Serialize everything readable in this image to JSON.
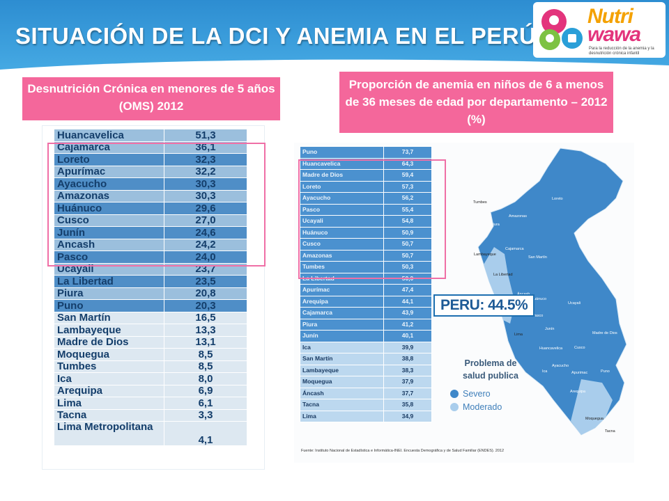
{
  "slide": {
    "title": "SITUACIÓN DE LA DCI Y ANEMIA EN EL PERÚ"
  },
  "logo": {
    "word1": "Nutri",
    "word2": "wawa",
    "tagline": "Para la reducción de la anemia y la desnutrición crónica infantil",
    "icon_name": "family-health-icon"
  },
  "left_panel": {
    "header": "Desnutrición Crónica en menores de 5 años (OMS) 2012",
    "rows": [
      {
        "region": "Huancavelica",
        "value": "51,3"
      },
      {
        "region": "Cajamarca",
        "value": "36,1"
      },
      {
        "region": "Loreto",
        "value": "32,3"
      },
      {
        "region": "Apurímac",
        "value": "32,2"
      },
      {
        "region": "Ayacucho",
        "value": "30,3"
      },
      {
        "region": "Amazonas",
        "value": "30,3"
      },
      {
        "region": "Huánuco",
        "value": "29,6"
      },
      {
        "region": "Cusco",
        "value": "27,0"
      },
      {
        "region": "Junín",
        "value": "24,6"
      },
      {
        "region": "Ancash",
        "value": "24,2"
      },
      {
        "region": "Pasco",
        "value": "24,0"
      },
      {
        "region": "Ucayali",
        "value": "23,7"
      },
      {
        "region": "La Libertad",
        "value": "23,5"
      },
      {
        "region": "Piura",
        "value": "20,8"
      },
      {
        "region": "Puno",
        "value": "20,3"
      },
      {
        "region": "San Martín",
        "value": "16,5"
      },
      {
        "region": "Lambayeque",
        "value": "13,3"
      },
      {
        "region": "Madre de Dios",
        "value": "13,1"
      },
      {
        "region": "Moquegua",
        "value": "8,5"
      },
      {
        "region": "Tumbes",
        "value": "8,5"
      },
      {
        "region": "Ica",
        "value": "8,0"
      },
      {
        "region": "Arequipa",
        "value": "6,9"
      },
      {
        "region": "Lima",
        "value": "6,1"
      },
      {
        "region": "Tacna",
        "value": "3,3"
      },
      {
        "region": "Lima Metropolitana",
        "value": "4,1"
      }
    ],
    "colors": {
      "dark": "#4f8ec7",
      "mid": "#9bbfdd",
      "light": "#c6d9ea",
      "pale": "#dde8f1",
      "highlight": "#ef6fa6"
    }
  },
  "right_panel": {
    "header": "Proporción de anemia en niños de 6 a menos de 36 meses de edad por departamento – 2012 (%)",
    "rows": [
      {
        "region": "Puno",
        "value": "73,7",
        "level": "sev"
      },
      {
        "region": "Huancavelica",
        "value": "64,3",
        "level": "sev"
      },
      {
        "region": "Madre de Dios",
        "value": "59,4",
        "level": "sev"
      },
      {
        "region": "Loreto",
        "value": "57,3",
        "level": "sev"
      },
      {
        "region": "Ayacucho",
        "value": "56,2",
        "level": "sev"
      },
      {
        "region": "Pasco",
        "value": "55,4",
        "level": "sev"
      },
      {
        "region": "Ucayali",
        "value": "54,8",
        "level": "sev"
      },
      {
        "region": "Huánuco",
        "value": "50,9",
        "level": "sev"
      },
      {
        "region": "Cusco",
        "value": "50,7",
        "level": "sev"
      },
      {
        "region": "Amazonas",
        "value": "50,7",
        "level": "sev"
      },
      {
        "region": "Tumbes",
        "value": "50,3",
        "level": "sev"
      },
      {
        "region": "La Libertad",
        "value": "50,0",
        "level": "sev"
      },
      {
        "region": "Apurímac",
        "value": "47,4",
        "level": "sev"
      },
      {
        "region": "Arequipa",
        "value": "44,1",
        "level": "sev"
      },
      {
        "region": "Cajamarca",
        "value": "43,9",
        "level": "sev"
      },
      {
        "region": "Piura",
        "value": "41,2",
        "level": "sev"
      },
      {
        "region": "Junín",
        "value": "40,1",
        "level": "sev"
      },
      {
        "region": "Ica",
        "value": "39,9",
        "level": "mod"
      },
      {
        "region": "San Martín",
        "value": "38,8",
        "level": "mod"
      },
      {
        "region": "Lambayeque",
        "value": "38,3",
        "level": "mod"
      },
      {
        "region": "Moquegua",
        "value": "37,9",
        "level": "mod"
      },
      {
        "region": "Áncash",
        "value": "37,7",
        "level": "mod"
      },
      {
        "region": "Tacna",
        "value": "35,8",
        "level": "mod"
      },
      {
        "region": "Lima",
        "value": "34,9",
        "level": "mod"
      }
    ],
    "national": "PERU: 44.5%",
    "legend": {
      "title": "Problema de salud publica",
      "severo": "Severo",
      "moderado": "Moderado",
      "severo_color": "#3f88c9",
      "moderado_color": "#a9cdec"
    },
    "source": "Fuente: Instituto Nacional de Estadística e Informática-INEI. Encuesta Demográfica y de Salud Familiar (ENDES). 2012",
    "map_labels": {
      "loreto": "Loreto",
      "tumbes": "Tumbes",
      "piura": "Piura",
      "amazonas": "Amazonas",
      "cajamarca": "Cajamarca",
      "lambayeque": "Lambayeque",
      "san_martin": "San Martín",
      "la_libertad": "La Libertad",
      "ancash": "Áncash",
      "huanuco": "Huánuco",
      "ucayali": "Ucayali",
      "pasco": "Pasco",
      "lima": "Lima",
      "junin": "Junín",
      "madre_de_dios": "Madre de Dios",
      "huancavelica": "Huancavelica",
      "cusco": "Cusco",
      "ica": "Ica",
      "ayacucho": "Ayacucho",
      "apurimac": "Apurimac",
      "puno": "Puno",
      "arequipa": "Arequipa",
      "moquegua": "Moquegua",
      "tacna": "Tacna"
    }
  }
}
